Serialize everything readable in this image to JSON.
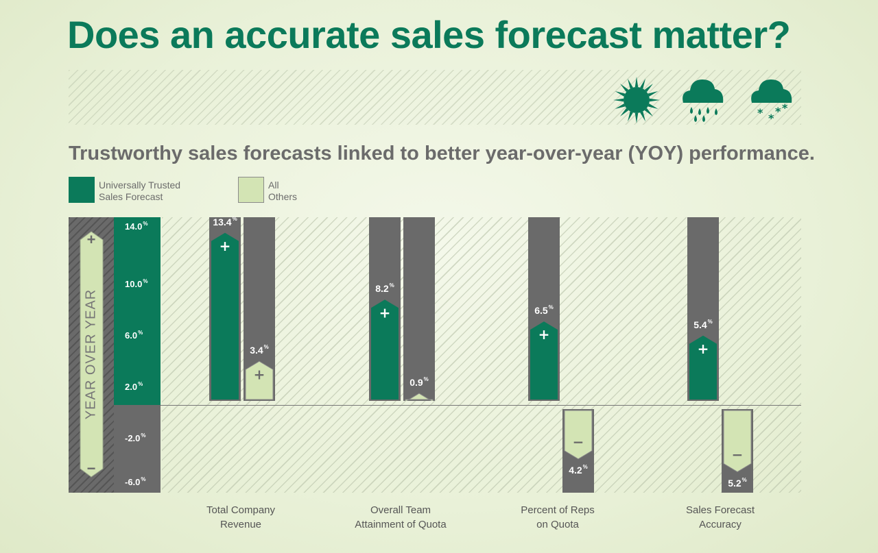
{
  "title": "Does an accurate sales forecast matter?",
  "subtitle": "Trustworthy sales forecasts linked to better year-over-year (YOY) performance.",
  "legend": [
    {
      "label_line1": "Universally Trusted",
      "label_line2": "Sales Forecast",
      "color": "#0b7a5a"
    },
    {
      "label_line1": "All",
      "label_line2": "Others",
      "color": "#d3e4b4"
    }
  ],
  "weather_icons": [
    "sun-icon",
    "rain-cloud-icon",
    "snow-cloud-icon"
  ],
  "y_axis": {
    "label": "YEAR OVER YEAR",
    "plus": "+",
    "minus": "−"
  },
  "colors": {
    "trusted": "#0b7a5a",
    "others": "#d3e4b4",
    "column_bg": "#6a6a6a",
    "title": "#0b7a5a",
    "text": "#6b6b6b"
  },
  "chart_data": {
    "type": "bar",
    "categories": [
      "Total Company\nRevenue",
      "Overall Team\nAttainment of Quota",
      "Percent of Reps\non Quota",
      "Sales Forecast\nAccuracy"
    ],
    "ylabel": "YEAR OVER YEAR",
    "yticks": [
      "14.0",
      "10.0",
      "6.0",
      "2.0",
      "-2.0",
      "-6.0"
    ],
    "ytick_unit": "%",
    "series": [
      {
        "name": "Universally Trusted Sales Forecast",
        "values": [
          13.4,
          8.2,
          6.5,
          5.4
        ],
        "labels": [
          "13.4",
          "8.2",
          "6.5",
          "5.4"
        ]
      },
      {
        "name": "All Others",
        "values": [
          3.4,
          0.9,
          -4.2,
          -5.2
        ],
        "labels": [
          "3.4",
          "0.9",
          "4.2",
          "5.2"
        ]
      }
    ],
    "unit": "%"
  }
}
